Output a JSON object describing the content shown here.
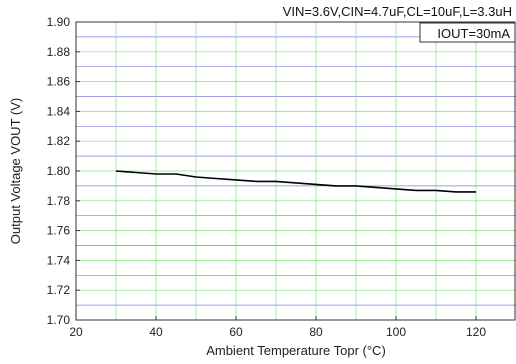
{
  "chart_data": {
    "type": "line",
    "title": "",
    "xlabel": "Ambient Temperature Topr (°C)",
    "ylabel": "Output Voltage VOUT (V)",
    "xlim": [
      20,
      130
    ],
    "ylim": [
      1.7,
      1.9
    ],
    "x_ticks": [
      "20",
      "40",
      "60",
      "80",
      "100",
      "120"
    ],
    "y_ticks": [
      "1.70",
      "1.72",
      "1.74",
      "1.76",
      "1.78",
      "1.80",
      "1.82",
      "1.84",
      "1.86",
      "1.88",
      "1.90"
    ],
    "grid": true,
    "annotations": {
      "conditions": "VIN=3.6V,CIN=4.7uF,CL=10uF,L=3.3uH",
      "load": "IOUT=30mA"
    },
    "colors": {
      "major_grid": "#7fe07f",
      "minor_grid": "#7f7fe0",
      "series": "#000000"
    },
    "series": [
      {
        "x": [
          30,
          35,
          40,
          45,
          50,
          55,
          60,
          65,
          70,
          75,
          80,
          85,
          90,
          95,
          100,
          105,
          110,
          115,
          120
        ],
        "values": [
          1.8,
          1.799,
          1.798,
          1.798,
          1.796,
          1.795,
          1.794,
          1.793,
          1.793,
          1.792,
          1.791,
          1.79,
          1.79,
          1.789,
          1.788,
          1.787,
          1.787,
          1.786,
          1.786
        ]
      }
    ]
  }
}
